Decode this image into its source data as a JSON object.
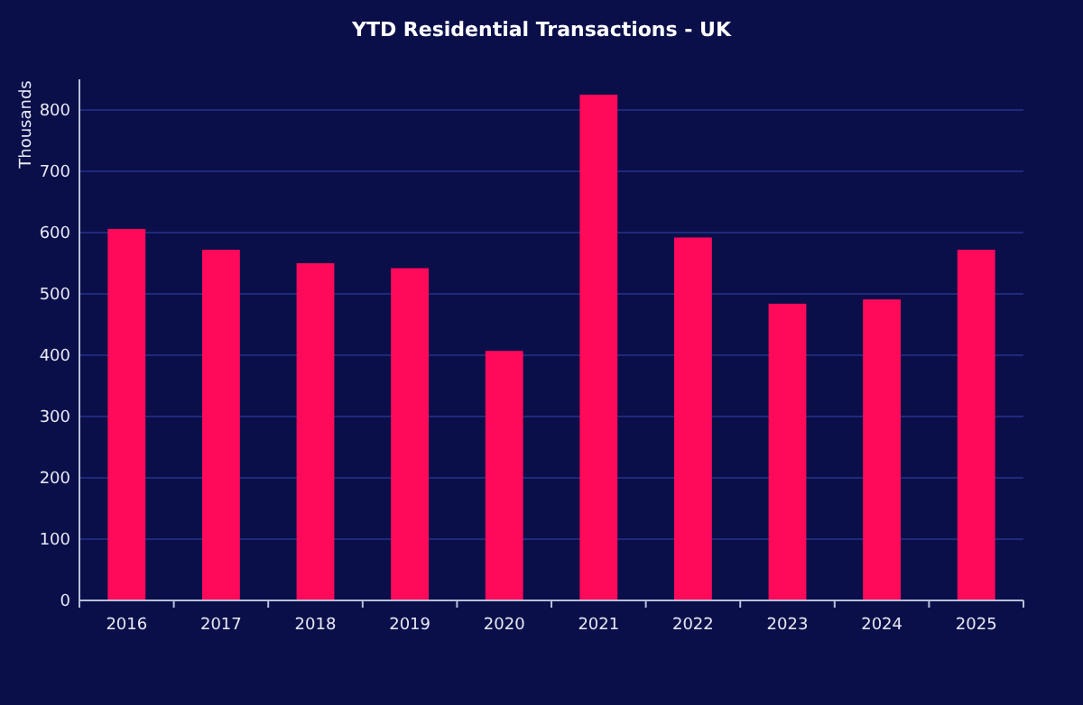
{
  "chart_data": {
    "type": "bar",
    "title": "YTD Residential Transactions - UK",
    "ylabel": "Thousands",
    "categories": [
      "2016",
      "2017",
      "2018",
      "2019",
      "2020",
      "2021",
      "2022",
      "2023",
      "2024",
      "2025"
    ],
    "values": [
      606,
      572,
      550,
      542,
      407,
      825,
      592,
      484,
      491,
      572
    ],
    "color": "#ff0a5a",
    "ylim": [
      0,
      850
    ],
    "yticks": [
      0,
      100,
      200,
      300,
      400,
      500,
      600,
      700,
      800
    ],
    "grid": "y"
  }
}
